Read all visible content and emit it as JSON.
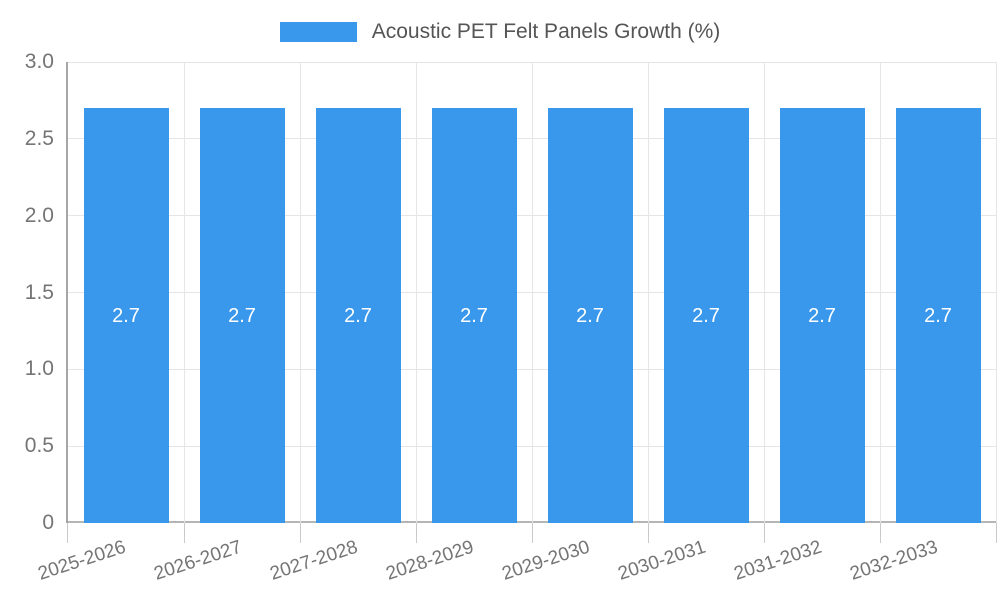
{
  "legend": {
    "items": [
      {
        "label": "Acoustic PET Felt Panels Growth (%)",
        "color": "#3998EB"
      }
    ]
  },
  "chart_data": {
    "type": "bar",
    "title": "Acoustic PET Felt Panels Growth (%)",
    "categories": [
      "2025-2026",
      "2026-2027",
      "2027-2028",
      "2028-2029",
      "2029-2030",
      "2030-2031",
      "2031-2032",
      "2032-2033"
    ],
    "series": [
      {
        "name": "Acoustic PET Felt Panels Growth (%)",
        "values": [
          2.7,
          2.7,
          2.7,
          2.7,
          2.7,
          2.7,
          2.7,
          2.7
        ]
      }
    ],
    "value_labels": [
      "2.7",
      "2.7",
      "2.7",
      "2.7",
      "2.7",
      "2.7",
      "2.7",
      "2.7"
    ],
    "xlabel": "",
    "ylabel": "",
    "ylim": [
      0,
      3.0
    ],
    "ytick_values": [
      3.0,
      2.5,
      2.0,
      1.5,
      1.0,
      0.5,
      0
    ],
    "ytick_labels": [
      "3.0",
      "2.5",
      "2.0",
      "1.5",
      "1.0",
      "0.5",
      "0"
    ],
    "grid": true,
    "legend_position": "top",
    "x_tick_rotation_deg": -18,
    "colors": {
      "bar": "#3998EB",
      "value_label": "#FFFFFF",
      "axis_text": "#757575",
      "grid_line": "#E5E5E5",
      "y_axis_line": "#A6A6A6",
      "x_axis_line": "#B5B5B5",
      "tick_mark": "#C9C9C9",
      "legend_text": "#555555"
    }
  }
}
